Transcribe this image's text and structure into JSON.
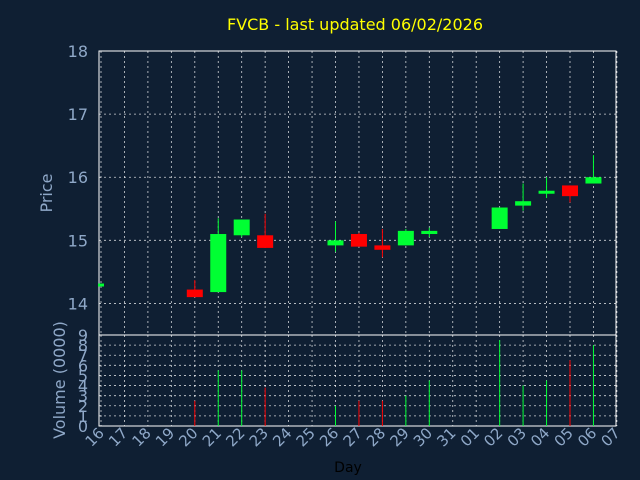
{
  "chart_data": {
    "type": "candlestick",
    "title": "FVCB - last updated 06/02/2026",
    "xlabel": "Day",
    "price_panel": {
      "ylabel": "Price",
      "ylim": [
        13.5,
        18
      ],
      "yticks": [
        "14",
        "15",
        "16",
        "17",
        "18"
      ],
      "grid": true
    },
    "volume_panel": {
      "ylabel": "Volume (0000)",
      "ylim": [
        0,
        9
      ],
      "yticks": [
        "0",
        "1",
        "2",
        "3",
        "4",
        "5",
        "6",
        "7",
        "8",
        "9"
      ],
      "grid": true
    },
    "x_tick_labels": [
      "16",
      "17",
      "18",
      "19",
      "20",
      "21",
      "22",
      "23",
      "24",
      "25",
      "26",
      "27",
      "28",
      "29",
      "30",
      "31",
      "01",
      "02",
      "03",
      "04",
      "05",
      "06",
      "07"
    ],
    "candles": [
      {
        "day": "16",
        "open": 14.3,
        "high": 14.3,
        "low": 14.3,
        "close": 14.3,
        "volume": 0
      },
      {
        "day": "20",
        "open": 14.22,
        "high": 14.37,
        "low": 14.1,
        "close": 14.1,
        "volume": 2.5
      },
      {
        "day": "21",
        "open": 14.18,
        "high": 15.35,
        "low": 14.18,
        "close": 15.1,
        "volume": 5.5
      },
      {
        "day": "22",
        "open": 15.08,
        "high": 15.33,
        "low": 15.05,
        "close": 15.33,
        "volume": 5.5
      },
      {
        "day": "23",
        "open": 15.08,
        "high": 15.42,
        "low": 14.88,
        "close": 14.88,
        "volume": 3.8
      },
      {
        "day": "26",
        "open": 14.92,
        "high": 15.3,
        "low": 14.82,
        "close": 15.0,
        "volume": 2.0
      },
      {
        "day": "27",
        "open": 15.1,
        "high": 15.12,
        "low": 14.9,
        "close": 14.9,
        "volume": 2.5
      },
      {
        "day": "28",
        "open": 14.92,
        "high": 15.18,
        "low": 14.73,
        "close": 14.85,
        "volume": 2.5
      },
      {
        "day": "29",
        "open": 14.92,
        "high": 15.18,
        "low": 14.92,
        "close": 15.15,
        "volume": 3.0
      },
      {
        "day": "30",
        "open": 15.1,
        "high": 15.2,
        "low": 15.05,
        "close": 15.15,
        "volume": 4.5
      },
      {
        "day": "02",
        "open": 15.18,
        "high": 15.52,
        "low": 15.18,
        "close": 15.52,
        "volume": 8.5
      },
      {
        "day": "03",
        "open": 15.55,
        "high": 15.9,
        "low": 15.47,
        "close": 15.62,
        "volume": 4.0
      },
      {
        "day": "04",
        "open": 15.73,
        "high": 16.0,
        "low": 15.67,
        "close": 15.77,
        "volume": 4.5
      },
      {
        "day": "05",
        "open": 15.87,
        "high": 15.87,
        "low": 15.6,
        "close": 15.7,
        "volume": 6.5
      },
      {
        "day": "06",
        "open": 15.9,
        "high": 16.35,
        "low": 15.9,
        "close": 16.0,
        "volume": 8.0
      }
    ],
    "colors": {
      "up": "#00ff33",
      "down": "#ff0000",
      "background": "#0f1f33",
      "axis": "#ffffff",
      "grid": "#ffffff",
      "label": "#8fa8c8",
      "title": "#ffff00"
    }
  }
}
